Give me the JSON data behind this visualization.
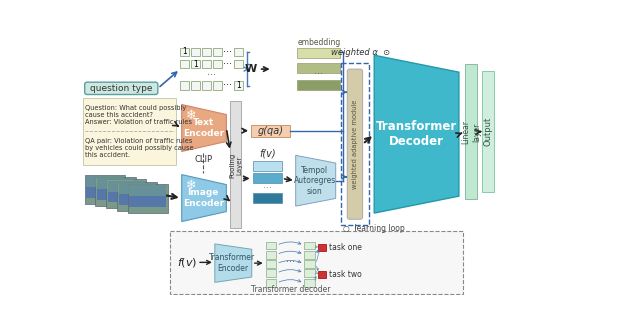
{
  "bg_color": "#ffffff",
  "fig_w": 6.4,
  "fig_h": 3.32,
  "colors": {
    "question_type_box": "#cce8e0",
    "question_type_border": "#5a9ea0",
    "text_box_bg": "#faf5dc",
    "text_encoder_fill": "#e8a882",
    "image_encoder_fill": "#8ecae6",
    "pooling_fill": "#e0e0e0",
    "one_hot_border": "#8aaa7a",
    "one_hot_fill": "#f5f5f5",
    "embedding_fill_1": "#d8dea8",
    "embedding_fill_2": "#b0bd84",
    "embedding_fill_3": "#8a9e65",
    "gqa_fill": "#f5cdb0",
    "fv_box1": "#b8e0ee",
    "fv_box2": "#5aaccc",
    "fv_box3": "#2e7a9a",
    "tempol_fill": "#b8dce8",
    "weighted_fill": "#d4cca8",
    "transformer_decoder_fill": "#40b8cc",
    "linear_fill": "#c0e8d0",
    "output_fill": "#d0eedd",
    "arrow_blue": "#3366aa",
    "arrow_dark": "#222222",
    "dashed_border": "#3366aa",
    "task_box_fill": "#ddeedd",
    "task_red_fill": "#cc3333",
    "task_border": "#88aa88"
  },
  "texts": {
    "question_type": "question type",
    "question_text": "Question: What could possibly\ncause this accident?\nAnswer: Violation of traffic rules",
    "qa_pair_text": "QA pair: Violation of traffic rules\nby vehicles could possibly cause\nthis accident.",
    "clip": "CLIP",
    "text_encoder": "Text\nEncoder",
    "image_encoder": "Image\nEncoder",
    "pooling": "Pooling\nLayer",
    "embedding": "embedding",
    "weighted_alpha": "weighted α  ⊙",
    "gqa": "g(qa)",
    "fv_label": "f(v)",
    "tempol": "Tempol\nAutoregres\nsion",
    "weighted_adaptive": "weighted adaptive module",
    "transformer_decoder": "Transformer\nDecoder",
    "linear_layer": "Linear\nlayer",
    "output": "Output",
    "learning_loop": "○  learning loop",
    "fv_bottom_label": "f(v)",
    "transformer_encoder_bottom": "Transformer\nEncoder",
    "transformer_decoder_bottom": "Transformer decoder",
    "task_one": "task one",
    "task_two": "task two"
  }
}
